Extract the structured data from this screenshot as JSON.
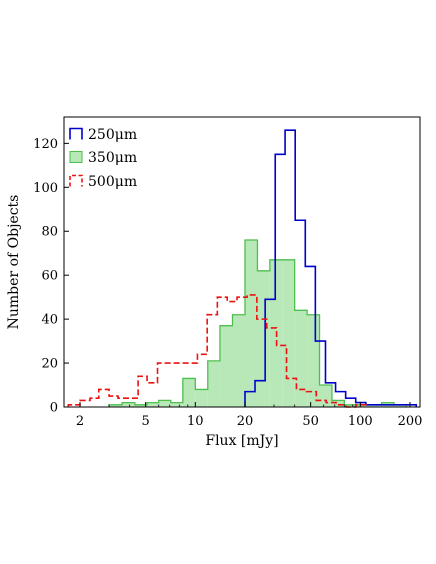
{
  "chart_data": {
    "type": "histogram",
    "xlabel": "Flux [mJy]",
    "ylabel": "Number of Objects",
    "xscale": "log",
    "xlim": [
      1.6,
      230
    ],
    "ylim": [
      0,
      132
    ],
    "xticks": [
      2,
      5,
      10,
      20,
      50,
      100,
      200
    ],
    "yticks": [
      0,
      20,
      40,
      60,
      80,
      100,
      120
    ],
    "legend_position": "top-left",
    "grid": false,
    "series": [
      {
        "name": "250μm",
        "legend_label": "250μm",
        "style": "step-solid",
        "color": "#0000cc",
        "bin_edges": [
          20,
          23,
          26.5,
          30.5,
          35,
          40.3,
          46.4,
          53.4,
          61.5,
          70.8,
          81.5,
          93.8,
          108,
          124.3,
          143.1,
          164.7,
          189.6,
          218.3
        ],
        "counts": [
          7,
          12,
          49,
          115,
          126,
          85,
          64,
          30,
          11,
          7,
          4,
          2,
          1,
          1,
          1,
          1,
          1
        ]
      },
      {
        "name": "350μm",
        "legend_label": "350μm",
        "style": "filled",
        "color": "#4dbf4d",
        "fill": "#b8e8b8",
        "bin_edges": [
          3.0,
          3.6,
          4.3,
          5.1,
          6.0,
          7.1,
          8.4,
          10.0,
          11.9,
          14.1,
          16.8,
          20.0,
          23.8,
          28.3,
          33.6,
          40.0,
          47.6,
          56.6,
          67.3,
          80.0,
          95.2,
          113.2,
          134.6,
          160.0,
          190.3
        ],
        "counts": [
          1,
          2,
          1,
          2,
          3,
          2,
          13,
          8,
          21,
          37,
          42,
          76,
          62,
          67,
          67,
          44,
          42,
          10,
          3,
          1,
          1,
          1,
          2,
          1
        ]
      },
      {
        "name": "500μm",
        "legend_label": "500μm",
        "style": "step-dashed",
        "color": "#ee1111",
        "bin_edges": [
          1.7,
          2.0,
          2.3,
          2.6,
          3.0,
          3.4,
          3.9,
          4.5,
          5.1,
          5.9,
          6.8,
          7.8,
          9.0,
          10.3,
          11.8,
          13.6,
          15.6,
          17.9,
          20.6,
          23.6,
          27.1,
          31.1,
          35.7,
          41.0,
          47.1,
          54.1,
          62.1,
          71.3,
          81.9,
          94.0,
          108
        ],
        "counts": [
          1,
          3,
          4,
          8,
          5,
          4,
          4,
          14,
          11,
          20,
          20,
          20,
          20,
          24,
          42,
          50,
          48,
          50,
          51,
          40,
          36,
          28,
          13,
          8,
          7,
          3,
          2,
          1,
          0,
          1
        ]
      }
    ]
  }
}
